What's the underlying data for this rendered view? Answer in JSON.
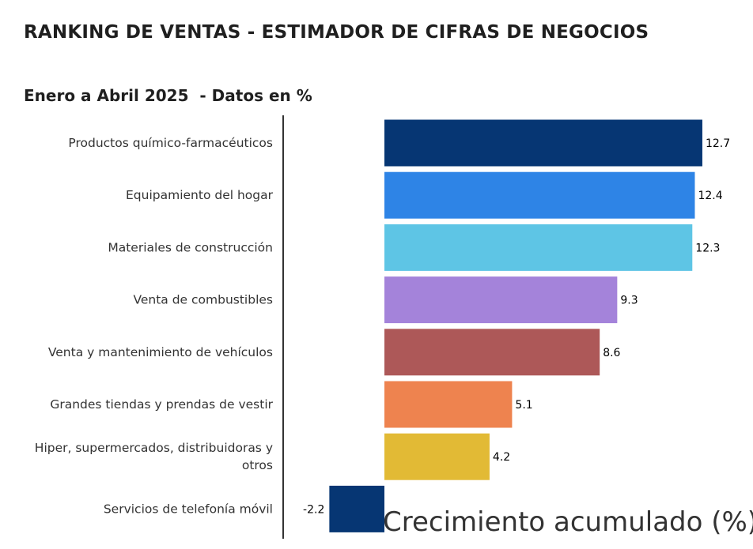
{
  "header": {
    "title": "RANKING DE VENTAS - ESTIMADOR DE CIFRAS DE NEGOCIOS",
    "subtitle": "Enero a Abril 2025  - Datos en %"
  },
  "chart_data": {
    "type": "bar",
    "orientation": "horizontal",
    "title": "RANKING DE VENTAS - ESTIMADOR DE CIFRAS DE NEGOCIOS",
    "subtitle": "Enero a Abril 2025  - Datos en %",
    "xlabel": "Crecimiento acumulado (%)",
    "ylabel": "",
    "categories": [
      [
        "Productos químico-farmacéuticos"
      ],
      [
        "Equipamiento del hogar"
      ],
      [
        "Materiales de construcción"
      ],
      [
        "Venta de combustibles"
      ],
      [
        "Venta y mantenimiento de vehículos"
      ],
      [
        "Grandes tiendas y prendas de vestir"
      ],
      [
        "Hiper, supermercados, distribuidoras y",
        "otros"
      ],
      [
        "Servicios de telefonía móvil"
      ]
    ],
    "values": [
      12.7,
      12.4,
      12.3,
      9.3,
      8.6,
      5.1,
      4.2,
      -2.2
    ],
    "value_labels": [
      "12.7",
      "12.4",
      "12.3",
      "9.3",
      "8.6",
      "5.1",
      "4.2",
      "-2.2"
    ],
    "colors": [
      "#063673",
      "#2e84e6",
      "#5ec5e5",
      "#a483da",
      "#ad5858",
      "#ee834f",
      "#e2ba35",
      "#063673"
    ],
    "grid": false,
    "legend": "none"
  }
}
